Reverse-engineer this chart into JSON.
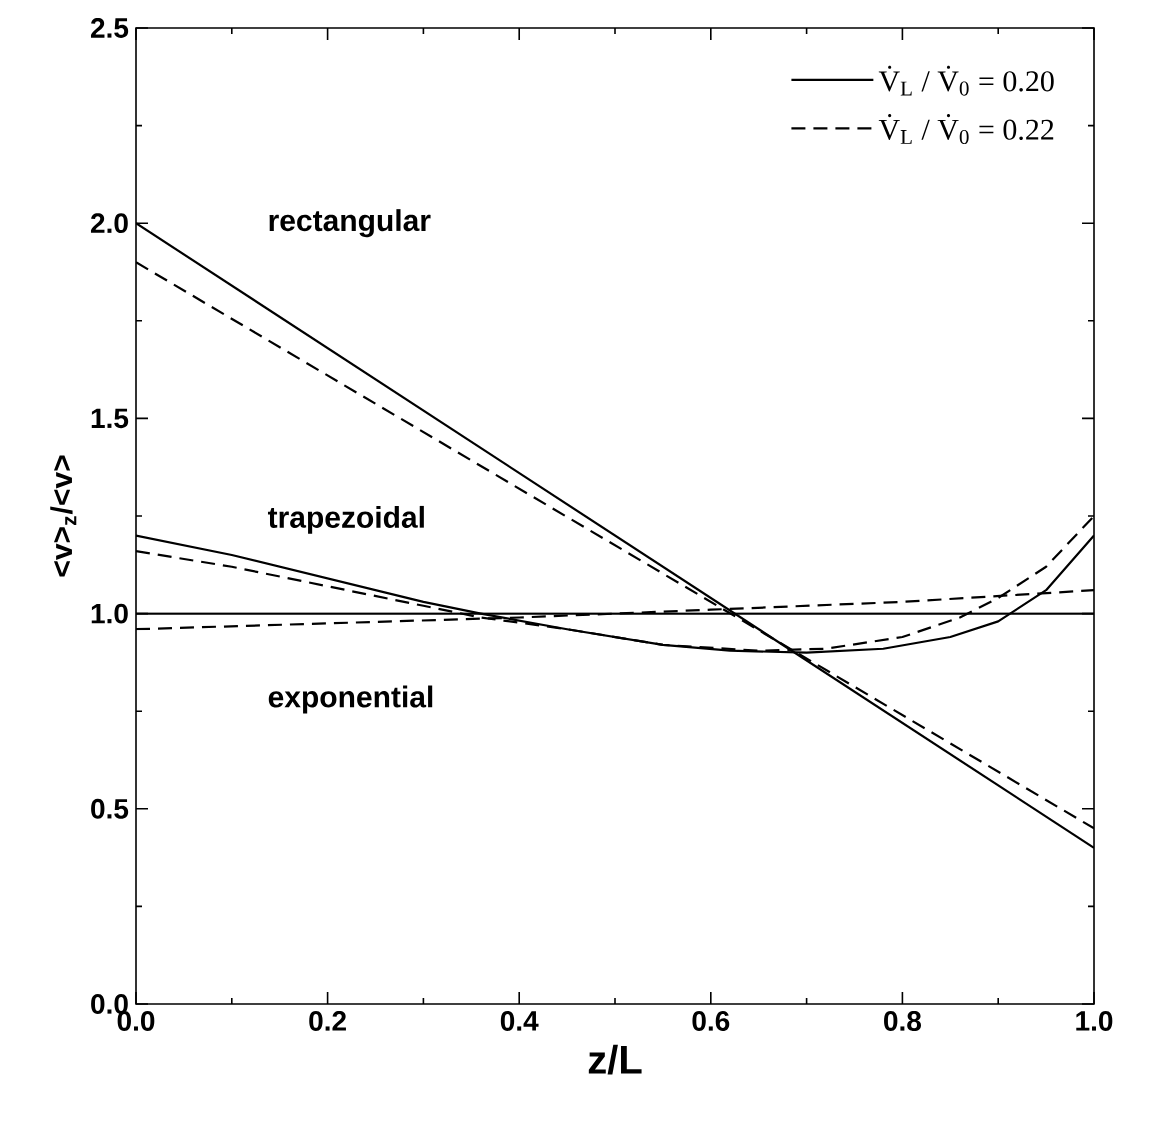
{
  "chart_data": {
    "type": "line",
    "xlabel": "z/L",
    "ylabel": "<v>$_{z}$/<v>",
    "xlim": [
      0,
      1
    ],
    "ylim": [
      0,
      2.5
    ],
    "xticks": [
      {
        "value": 0,
        "label": "0.0"
      },
      0.2,
      0.4,
      0.6,
      0.8,
      {
        "value": 1,
        "label": "1.0"
      }
    ],
    "yticks": [
      {
        "value": 0,
        "label": "0.0"
      },
      0.5,
      {
        "value": 1,
        "label": "1.0"
      },
      1.5,
      {
        "value": 2,
        "label": "2.0"
      },
      2.5
    ],
    "legend": "top right",
    "grid": false,
    "marker": "none",
    "series": [
      {
        "name": "V̇$_{L}$ / V̇$_{0}$ = 0.20",
        "color": "#000000",
        "line_style": "solid",
        "x": [
          0,
          1
        ],
        "values": [
          2.0,
          0.4
        ]
      },
      {
        "name": "V̇$_{L}$ / V̇$_{0}$ = 0.22",
        "color": "#000000",
        "line_style": "dashed",
        "x": [
          0,
          1
        ],
        "values": [
          1.9,
          0.45
        ]
      },
      {
        "color": "#000000",
        "line_style": "solid",
        "x": [
          0,
          0.1,
          0.2,
          0.3,
          0.36,
          0.45,
          0.55,
          0.62,
          0.7,
          0.78,
          0.85,
          0.9,
          0.95,
          1.0
        ],
        "values": [
          1.2,
          1.15,
          1.09,
          1.03,
          1.0,
          0.96,
          0.92,
          0.905,
          0.9,
          0.91,
          0.94,
          0.98,
          1.06,
          1.2
        ]
      },
      {
        "color": "#000000",
        "line_style": "dashed",
        "x": [
          0,
          0.1,
          0.2,
          0.3,
          0.36,
          0.45,
          0.55,
          0.65,
          0.72,
          0.8,
          0.86,
          0.9,
          0.95,
          1.0
        ],
        "values": [
          1.16,
          1.12,
          1.07,
          1.02,
          0.99,
          0.96,
          0.92,
          0.905,
          0.91,
          0.94,
          0.99,
          1.04,
          1.12,
          1.25
        ]
      },
      {
        "color": "#000000",
        "line_style": "solid",
        "x": [
          0,
          1
        ],
        "values": [
          1.0,
          1.0
        ]
      },
      {
        "color": "#000000",
        "line_style": "dashed",
        "x": [
          0,
          0.2,
          0.4,
          0.6,
          0.8,
          1.0
        ],
        "values": [
          0.96,
          0.975,
          0.99,
          1.01,
          1.03,
          1.06
        ]
      }
    ],
    "annotations": [
      "rectangular",
      "trapezoidal",
      "exponential"
    ]
  }
}
